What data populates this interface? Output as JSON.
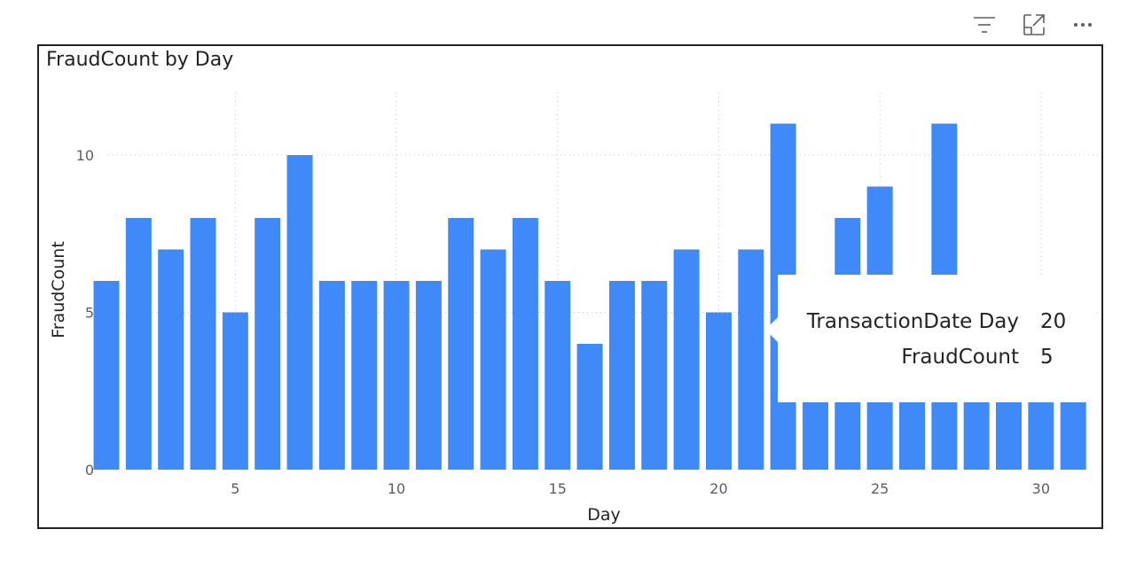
{
  "toolbar": {
    "icons": [
      "filter-icon",
      "focus-mode-icon",
      "more-options-icon"
    ]
  },
  "chart_data": {
    "type": "bar",
    "title": "FraudCount by Day",
    "xlabel": "Day",
    "ylabel": "FraudCount",
    "x": [
      1,
      2,
      3,
      4,
      5,
      6,
      7,
      8,
      9,
      10,
      11,
      12,
      13,
      14,
      15,
      16,
      17,
      18,
      19,
      20,
      21,
      22,
      23,
      24,
      25,
      26,
      27,
      28,
      29,
      30,
      31
    ],
    "values": [
      6,
      8,
      7,
      8,
      5,
      8,
      10,
      6,
      6,
      6,
      6,
      8,
      7,
      8,
      6,
      4,
      6,
      6,
      7,
      5,
      7,
      11,
      6,
      8,
      9,
      6,
      11,
      6,
      6,
      6,
      4
    ],
    "xticks": [
      5,
      10,
      15,
      20,
      25,
      30
    ],
    "yticks": [
      0,
      5,
      10
    ],
    "ylim": [
      0,
      12
    ],
    "bar_color": "#4089f9",
    "grid": true
  },
  "tooltip": {
    "rows": [
      {
        "label": "TransactionDate Day",
        "value": "20"
      },
      {
        "label": "FraudCount",
        "value": "5"
      }
    ]
  }
}
